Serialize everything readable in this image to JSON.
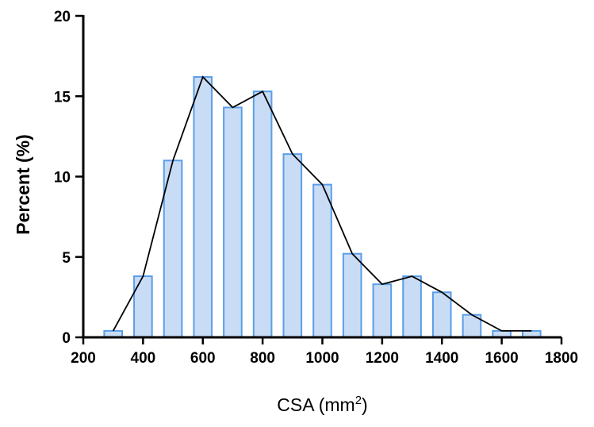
{
  "chart_data": {
    "type": "bar",
    "title": "",
    "xlabel": "CSA (mm",
    "xlabel_superscript": "2",
    "xlabel_suffix": ")",
    "ylabel": "Percent (%)",
    "xlim": [
      200,
      1800
    ],
    "ylim": [
      0,
      20
    ],
    "x_ticks": [
      200,
      400,
      600,
      800,
      1000,
      1200,
      1400,
      1600,
      1800
    ],
    "y_ticks": [
      0,
      5,
      10,
      15,
      20
    ],
    "bin_width": 100,
    "bins": [
      300,
      400,
      500,
      600,
      700,
      800,
      900,
      1000,
      1100,
      1200,
      1300,
      1400,
      1500,
      1600,
      1700
    ],
    "values": [
      0.4,
      3.8,
      11.0,
      16.2,
      14.3,
      15.3,
      11.4,
      9.5,
      5.2,
      3.3,
      3.8,
      2.8,
      1.4,
      0.4,
      0.4
    ],
    "line": {
      "x": [
        300,
        400,
        500,
        600,
        700,
        800,
        900,
        1000,
        1100,
        1200,
        1300,
        1400,
        1500,
        1600,
        1700
      ],
      "y": [
        0.4,
        3.8,
        11.0,
        16.2,
        14.3,
        15.3,
        11.4,
        9.5,
        5.2,
        3.3,
        3.8,
        2.8,
        1.4,
        0.4,
        0.4
      ]
    },
    "colors": {
      "bar_fill": "#c9dcf5",
      "bar_stroke": "#5a9ee8",
      "line": "#000000",
      "axis": "#000000"
    },
    "grid": false,
    "legend": "none"
  }
}
